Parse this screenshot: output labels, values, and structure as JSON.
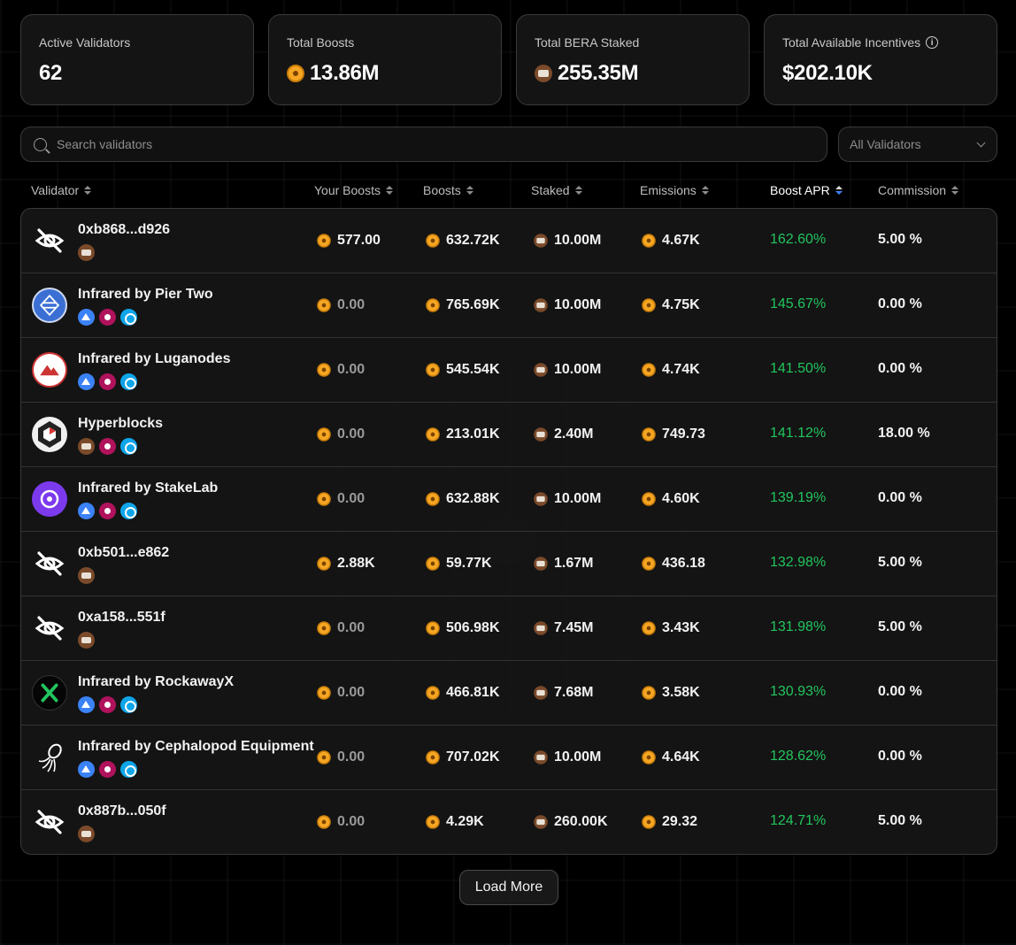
{
  "stats": [
    {
      "label": "Active Validators",
      "value": "62",
      "icon": "none"
    },
    {
      "label": "Total Boosts",
      "value": "13.86M",
      "icon": "bgt-coin-icon"
    },
    {
      "label": "Total BERA Staked",
      "value": "255.35M",
      "icon": "bera-coin-icon"
    },
    {
      "label": "Total Available Incentives",
      "value": "$202.10K",
      "icon": "info-icon"
    }
  ],
  "search": {
    "placeholder": "Search validators"
  },
  "filter": {
    "selected": "All Validators"
  },
  "columns": {
    "validator": "Validator",
    "your_boosts": "Your Boosts",
    "boosts": "Boosts",
    "staked": "Staked",
    "emissions": "Emissions",
    "boost_apr": "Boost APR",
    "commission": "Commission"
  },
  "validators": [
    {
      "name": "0xb868...d926",
      "avatar": "hidden",
      "badges": [
        "brown"
      ],
      "your_boosts": "577.00",
      "boosts": "632.72K",
      "staked": "10.00M",
      "emissions": "4.67K",
      "boost_apr": "162.60%",
      "commission": "5.00 %"
    },
    {
      "name": "Infrared by Pier Two",
      "avatar": "pier",
      "badges": [
        "blue",
        "magenta",
        "cyan"
      ],
      "your_boosts": "0.00",
      "boosts": "765.69K",
      "staked": "10.00M",
      "emissions": "4.75K",
      "boost_apr": "145.67%",
      "commission": "0.00 %"
    },
    {
      "name": "Infrared by Luganodes",
      "avatar": "luga",
      "badges": [
        "blue",
        "magenta",
        "cyan"
      ],
      "your_boosts": "0.00",
      "boosts": "545.54K",
      "staked": "10.00M",
      "emissions": "4.74K",
      "boost_apr": "141.50%",
      "commission": "0.00 %"
    },
    {
      "name": "Hyperblocks",
      "avatar": "hyper",
      "badges": [
        "brown",
        "magenta",
        "cyan"
      ],
      "your_boosts": "0.00",
      "boosts": "213.01K",
      "staked": "2.40M",
      "emissions": "749.73",
      "boost_apr": "141.12%",
      "commission": "18.00 %"
    },
    {
      "name": "Infrared by StakeLab",
      "avatar": "stake",
      "badges": [
        "blue",
        "magenta",
        "cyan"
      ],
      "your_boosts": "0.00",
      "boosts": "632.88K",
      "staked": "10.00M",
      "emissions": "4.60K",
      "boost_apr": "139.19%",
      "commission": "0.00 %"
    },
    {
      "name": "0xb501...e862",
      "avatar": "hidden",
      "badges": [
        "brown"
      ],
      "your_boosts": "2.88K",
      "boosts": "59.77K",
      "staked": "1.67M",
      "emissions": "436.18",
      "boost_apr": "132.98%",
      "commission": "5.00 %"
    },
    {
      "name": "0xa158...551f",
      "avatar": "hidden",
      "badges": [
        "brown"
      ],
      "your_boosts": "0.00",
      "boosts": "506.98K",
      "staked": "7.45M",
      "emissions": "3.43K",
      "boost_apr": "131.98%",
      "commission": "5.00 %"
    },
    {
      "name": "Infrared by RockawayX",
      "avatar": "rock",
      "badges": [
        "blue",
        "magenta",
        "cyan"
      ],
      "your_boosts": "0.00",
      "boosts": "466.81K",
      "staked": "7.68M",
      "emissions": "3.58K",
      "boost_apr": "130.93%",
      "commission": "0.00 %"
    },
    {
      "name": "Infrared by Cephalopod Equipment",
      "avatar": "ceph",
      "badges": [
        "blue",
        "magenta",
        "cyan"
      ],
      "your_boosts": "0.00",
      "boosts": "707.02K",
      "staked": "10.00M",
      "emissions": "4.64K",
      "boost_apr": "128.62%",
      "commission": "0.00 %"
    },
    {
      "name": "0x887b...050f",
      "avatar": "hidden",
      "badges": [
        "brown"
      ],
      "your_boosts": "0.00",
      "boosts": "4.29K",
      "staked": "260.00K",
      "emissions": "29.32",
      "boost_apr": "124.71%",
      "commission": "5.00 %"
    }
  ],
  "load_more": "Load More",
  "colors": {
    "accent_green": "#22c55e",
    "sort_active": "#3b82f6",
    "bgt_gold": "#f5a623",
    "bera_brown": "#7a4a2a"
  }
}
